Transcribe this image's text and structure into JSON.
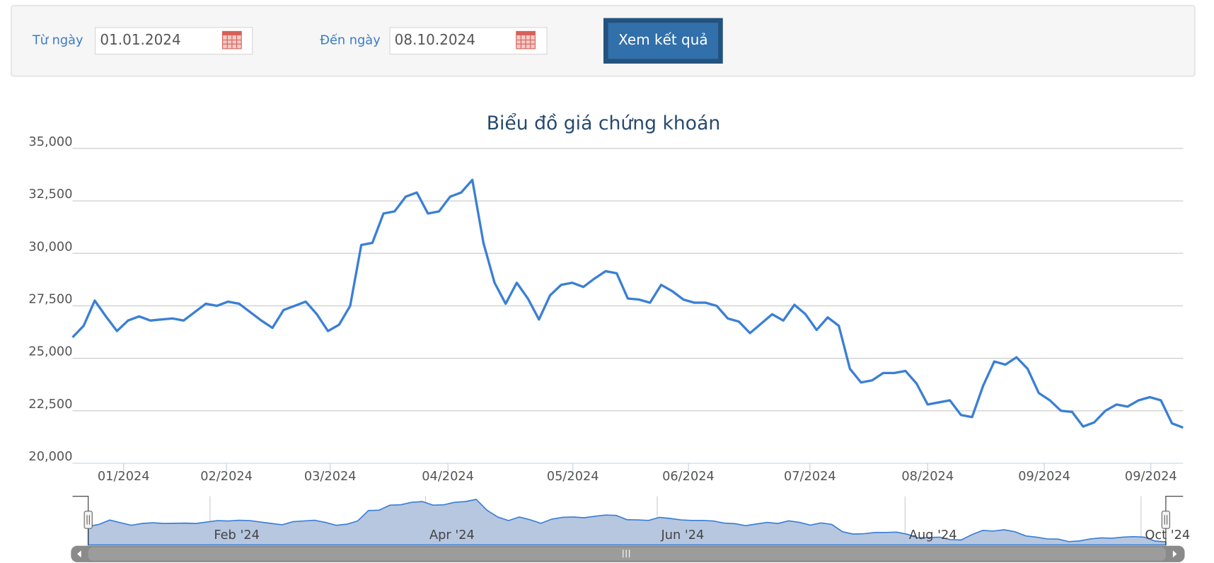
{
  "form": {
    "from_label": "Từ ngày",
    "from_value": "01.01.2024",
    "to_label": "Đến ngày",
    "to_value": "08.10.2024",
    "button": "Xem kết quả"
  },
  "chart_data": {
    "type": "line",
    "title": "Biểu đồ giá chứng khoán",
    "color": "#3a7fd5",
    "grid": true,
    "values": [
      26000,
      26550,
      27750,
      27000,
      26300,
      26800,
      27000,
      26800,
      26850,
      26900,
      26800,
      27200,
      27600,
      27500,
      27700,
      27600,
      27200,
      26800,
      26450,
      27300,
      27500,
      27700,
      27100,
      26300,
      26600,
      27500,
      30400,
      30500,
      31900,
      32000,
      32700,
      32900,
      31900,
      32000,
      32700,
      32900,
      33500,
      30500,
      28600,
      27600,
      28600,
      27850,
      26850,
      28000,
      28500,
      28600,
      28400,
      28800,
      29150,
      29050,
      27850,
      27800,
      27650,
      28500,
      28200,
      27800,
      27650,
      27650,
      27500,
      26900,
      26750,
      26200,
      26650,
      27100,
      26800,
      27550,
      27100,
      26350,
      26950,
      26550,
      24500,
      23850,
      23950,
      24300,
      24300,
      24400,
      23800,
      22800,
      22900,
      23000,
      22300,
      22200,
      23700,
      24850,
      24700,
      25050,
      24500,
      23350,
      23000,
      22500,
      22450,
      21750,
      21950,
      22500,
      22800,
      22700,
      23000,
      23150,
      23000,
      21900,
      21700
    ],
    "xlim": [
      0,
      100
    ],
    "xticks": [
      {
        "value": 4.6,
        "label": "01/2024"
      },
      {
        "value": 13.86,
        "label": "02/2024"
      },
      {
        "value": 23.2,
        "label": "03/2024"
      },
      {
        "value": 33.8,
        "label": "04/2024"
      },
      {
        "value": 45.05,
        "label": "05/2024"
      },
      {
        "value": 55.45,
        "label": "06/2024"
      },
      {
        "value": 66.4,
        "label": "07/2024"
      },
      {
        "value": 77.0,
        "label": "08/2024"
      },
      {
        "value": 87.5,
        "label": "09/2024"
      },
      {
        "value": 97.1,
        "label": "09/2024"
      }
    ],
    "ylim": [
      20000,
      35000
    ],
    "yticks": [
      {
        "value": 20000,
        "label": "20,000"
      },
      {
        "value": 22500,
        "label": "22,500"
      },
      {
        "value": 25000,
        "label": "25,000"
      },
      {
        "value": 27500,
        "label": "27,500"
      },
      {
        "value": 30000,
        "label": "30,000"
      },
      {
        "value": 32500,
        "label": "32,500"
      },
      {
        "value": 35000,
        "label": "35,000"
      }
    ],
    "navigator": {
      "color": "#b3c4de",
      "xticks": [
        {
          "value": 11.3,
          "label": "Feb '24"
        },
        {
          "value": 31.3,
          "label": "Apr '24"
        },
        {
          "value": 52.8,
          "label": "Jun '24"
        },
        {
          "value": 75.8,
          "label": "Aug '24"
        },
        {
          "value": 97.7,
          "label": "Oct '24"
        }
      ]
    }
  }
}
